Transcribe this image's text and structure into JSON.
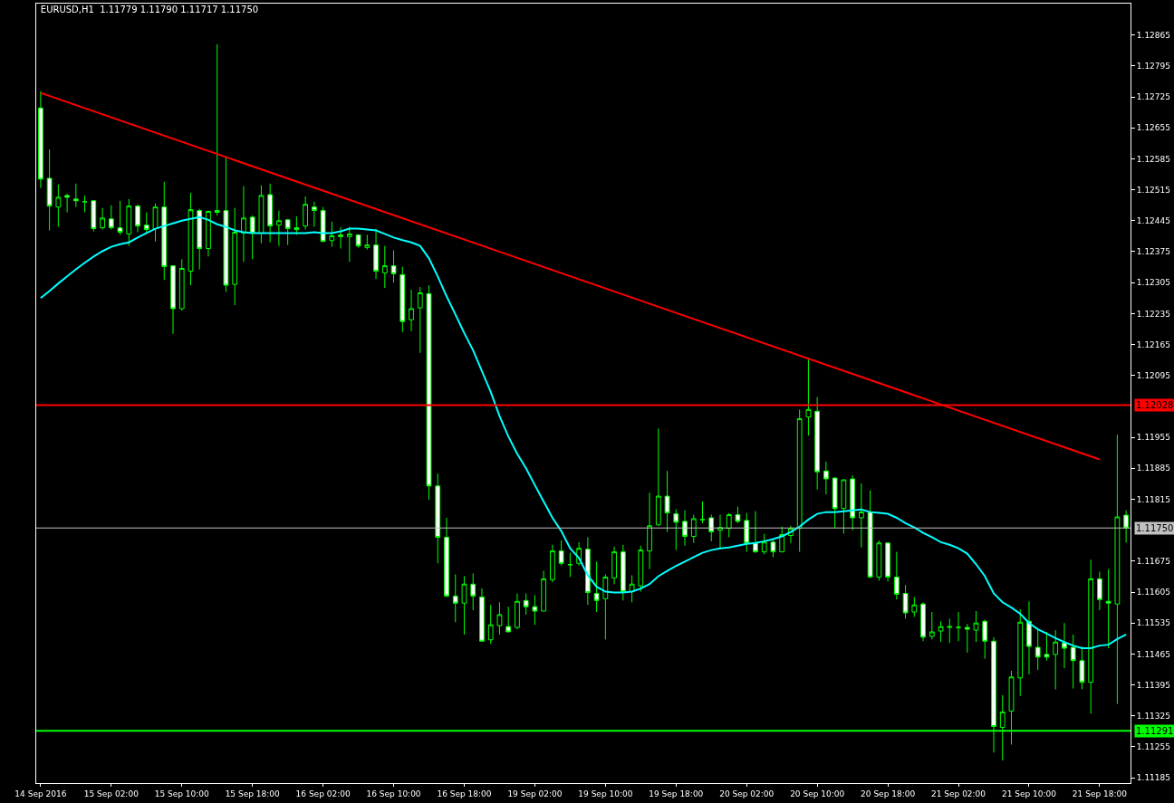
{
  "chart_data": {
    "type": "candlestick",
    "title": "EURUSD,H1  1.11779 1.11790 1.11717 1.11750",
    "categories": [
      "14 Sep 2016",
      null,
      null,
      null,
      null,
      null,
      null,
      null,
      "15 Sep 02:00",
      null,
      null,
      null,
      null,
      null,
      null,
      null,
      "15 Sep 10:00",
      null,
      null,
      null,
      null,
      null,
      null,
      null,
      "15 Sep 18:00",
      null,
      null,
      null,
      null,
      null,
      null,
      null,
      "16 Sep 02:00",
      null,
      null,
      null,
      null,
      null,
      null,
      null,
      "16 Sep 10:00",
      null,
      null,
      null,
      null,
      null,
      null,
      null,
      "16 Sep 18:00",
      null,
      null,
      null,
      null,
      null,
      null,
      null,
      "19 Sep 02:00",
      null,
      null,
      null,
      null,
      null,
      null,
      null,
      "19 Sep 10:00",
      null,
      null,
      null,
      null,
      null,
      null,
      null,
      "19 Sep 18:00",
      null,
      null,
      null,
      null,
      null,
      null,
      null,
      "20 Sep 02:00",
      null,
      null,
      null,
      null,
      null,
      null,
      null,
      "20 Sep 10:00",
      null,
      null,
      null,
      null,
      null,
      null,
      null,
      "20 Sep 18:00",
      null,
      null,
      null,
      null,
      null,
      null,
      null,
      "21 Sep 02:00",
      null,
      null,
      null,
      null,
      null,
      null,
      null,
      "21 Sep 10:00",
      null,
      null,
      null,
      null,
      null,
      null,
      null,
      "21 Sep 18:00",
      null,
      null,
      null
    ],
    "series": [
      {
        "type": "line",
        "color": "#00ffff",
        "values": [
          1.1227,
          1.12286,
          1.12303,
          1.12319,
          1.12335,
          1.1235,
          1.12364,
          1.12376,
          1.12386,
          1.12392,
          1.12396,
          1.12407,
          1.12417,
          1.12427,
          1.12433,
          1.12439,
          1.12445,
          1.12449,
          1.12453,
          1.12447,
          1.12437,
          1.12431,
          1.12423,
          1.12419,
          1.12417,
          1.12417,
          1.12417,
          1.12417,
          1.12417,
          1.12417,
          1.12417,
          1.12419,
          1.12417,
          1.12417,
          1.12421,
          1.12427,
          1.12427,
          1.12425,
          1.12423,
          1.12415,
          1.12407,
          1.12401,
          1.12396,
          1.12388,
          1.1236,
          1.12319,
          1.12274,
          1.12233,
          1.12191,
          1.12152,
          1.12105,
          1.12058,
          1.12003,
          1.11957,
          1.11918,
          1.11885,
          1.11847,
          1.1181,
          1.11773,
          1.11743,
          1.11704,
          1.11682,
          1.11643,
          1.11617,
          1.11606,
          1.11604,
          1.11604,
          1.11606,
          1.11613,
          1.11623,
          1.11641,
          1.11653,
          1.11664,
          1.11674,
          1.11684,
          1.11694,
          1.117,
          1.11704,
          1.11706,
          1.1171,
          1.11714,
          1.11716,
          1.1172,
          1.11725,
          1.11731,
          1.11741,
          1.11753,
          1.11769,
          1.11782,
          1.11786,
          1.11786,
          1.11788,
          1.1179,
          1.11792,
          1.11786,
          1.11784,
          1.11782,
          1.11773,
          1.11761,
          1.11751,
          1.11739,
          1.11729,
          1.11718,
          1.11712,
          1.11704,
          1.11692,
          1.11668,
          1.11641,
          1.11602,
          1.11582,
          1.1157,
          1.11556,
          1.11535,
          1.11521,
          1.11511,
          1.11501,
          1.11492,
          1.11484,
          1.11478,
          1.11478,
          1.11484,
          1.11486,
          1.11499,
          1.11509
        ]
      },
      {
        "type": "line",
        "color": "#ff0000",
        "x": [
          "14 Sep 2016",
          "21 Sep 18:00"
        ],
        "values": [
          1.12734,
          1.11905
        ]
      },
      {
        "color": "#00ff00",
        "ohlc": [
          [
            1.127,
            1.12738,
            1.12519,
            1.12539
          ],
          [
            1.12541,
            1.12606,
            1.12423,
            1.12478
          ],
          [
            1.12476,
            1.12527,
            1.12431,
            1.12498
          ],
          [
            1.12502,
            1.12506,
            1.12464,
            1.12498
          ],
          [
            1.12494,
            1.12529,
            1.12476,
            1.1249
          ],
          [
            1.12488,
            1.12502,
            1.12464,
            1.12488
          ],
          [
            1.1249,
            1.12492,
            1.12421,
            1.12427
          ],
          [
            1.12429,
            1.12474,
            1.12425,
            1.12451
          ],
          [
            1.12449,
            1.1248,
            1.12425,
            1.12429
          ],
          [
            1.12429,
            1.1249,
            1.12413,
            1.12419
          ],
          [
            1.12415,
            1.12494,
            1.12388,
            1.12478
          ],
          [
            1.12478,
            1.12482,
            1.12419,
            1.12433
          ],
          [
            1.12435,
            1.12464,
            1.12415,
            1.12425
          ],
          [
            1.12427,
            1.12484,
            1.12398,
            1.12476
          ],
          [
            1.12476,
            1.12533,
            1.12311,
            1.12341
          ],
          [
            1.12343,
            1.12343,
            1.12189,
            1.12246
          ],
          [
            1.12246,
            1.12358,
            1.12242,
            1.12337
          ],
          [
            1.12331,
            1.12508,
            1.12299,
            1.1247
          ],
          [
            1.12468,
            1.12472,
            1.12335,
            1.12382
          ],
          [
            1.12382,
            1.12468,
            1.12364,
            1.12466
          ],
          [
            1.12468,
            1.12844,
            1.12457,
            1.12464
          ],
          [
            1.12468,
            1.12588,
            1.12284,
            1.12299
          ],
          [
            1.12301,
            1.12474,
            1.12254,
            1.12419
          ],
          [
            1.12417,
            1.12523,
            1.12352,
            1.12451
          ],
          [
            1.12453,
            1.12457,
            1.12358,
            1.12417
          ],
          [
            1.12417,
            1.12525,
            1.12394,
            1.12502
          ],
          [
            1.12504,
            1.12529,
            1.12396,
            1.12433
          ],
          [
            1.12435,
            1.12468,
            1.12388,
            1.12445
          ],
          [
            1.12447,
            1.12449,
            1.1239,
            1.12427
          ],
          [
            1.12429,
            1.12455,
            1.12413,
            1.12425
          ],
          [
            1.12433,
            1.125,
            1.12425,
            1.12482
          ],
          [
            1.12476,
            1.12488,
            1.12431,
            1.12468
          ],
          [
            1.12468,
            1.12476,
            1.12398,
            1.12398
          ],
          [
            1.124,
            1.12443,
            1.12386,
            1.12411
          ],
          [
            1.12413,
            1.12431,
            1.12382,
            1.12409
          ],
          [
            1.12409,
            1.12431,
            1.12352,
            1.12415
          ],
          [
            1.12413,
            1.12413,
            1.12384,
            1.12388
          ],
          [
            1.12384,
            1.12413,
            1.1238,
            1.1239
          ],
          [
            1.1239,
            1.12427,
            1.12313,
            1.12331
          ],
          [
            1.12327,
            1.12388,
            1.12293,
            1.12343
          ],
          [
            1.12343,
            1.12378,
            1.12305,
            1.12325
          ],
          [
            1.12323,
            1.12341,
            1.12193,
            1.12217
          ],
          [
            1.12221,
            1.12289,
            1.12195,
            1.12246
          ],
          [
            1.12248,
            1.12295,
            1.12146,
            1.12282
          ],
          [
            1.1228,
            1.12299,
            1.11814,
            1.11845
          ],
          [
            1.11845,
            1.11873,
            1.1167,
            1.11729
          ],
          [
            1.11729,
            1.11773,
            1.11594,
            1.11596
          ],
          [
            1.11596,
            1.11645,
            1.11537,
            1.1158
          ],
          [
            1.1158,
            1.11641,
            1.11509,
            1.11623
          ],
          [
            1.11623,
            1.11647,
            1.11564,
            1.11596
          ],
          [
            1.11594,
            1.11613,
            1.11494,
            1.11494
          ],
          [
            1.11497,
            1.11576,
            1.11488,
            1.11531
          ],
          [
            1.11529,
            1.11582,
            1.11509,
            1.11554
          ],
          [
            1.11527,
            1.11572,
            1.11515,
            1.11515
          ],
          [
            1.11525,
            1.11602,
            1.11521,
            1.11584
          ],
          [
            1.11586,
            1.11602,
            1.11554,
            1.11572
          ],
          [
            1.11572,
            1.11598,
            1.11531,
            1.11562
          ],
          [
            1.11562,
            1.11653,
            1.11562,
            1.11635
          ],
          [
            1.11633,
            1.11712,
            1.11627,
            1.11698
          ],
          [
            1.11698,
            1.11722,
            1.11665,
            1.1167
          ],
          [
            1.11667,
            1.11694,
            1.11639,
            1.11667
          ],
          [
            1.1167,
            1.11718,
            1.11665,
            1.11704
          ],
          [
            1.11702,
            1.11729,
            1.11576,
            1.11604
          ],
          [
            1.11602,
            1.11674,
            1.1156,
            1.11586
          ],
          [
            1.1159,
            1.11645,
            1.11498,
            1.11639
          ],
          [
            1.11637,
            1.11708,
            1.11623,
            1.11696
          ],
          [
            1.11696,
            1.11712,
            1.11586,
            1.11606
          ],
          [
            1.11606,
            1.11643,
            1.11582,
            1.11623
          ],
          [
            1.11619,
            1.1171,
            1.11606,
            1.117
          ],
          [
            1.11698,
            1.1183,
            1.11657,
            1.11755
          ],
          [
            1.11757,
            1.11975,
            1.11755,
            1.11822
          ],
          [
            1.11822,
            1.11879,
            1.11741,
            1.11784
          ],
          [
            1.11782,
            1.11792,
            1.117,
            1.11763
          ],
          [
            1.11765,
            1.1179,
            1.1171,
            1.11731
          ],
          [
            1.11731,
            1.1178,
            1.11716,
            1.11771
          ],
          [
            1.11769,
            1.1181,
            1.11761,
            1.11769
          ],
          [
            1.11773,
            1.1178,
            1.1172,
            1.11741
          ],
          [
            1.11745,
            1.1178,
            1.11704,
            1.11751
          ],
          [
            1.11749,
            1.11784,
            1.11729,
            1.1178
          ],
          [
            1.1178,
            1.11798,
            1.11761,
            1.11765
          ],
          [
            1.11767,
            1.11784,
            1.11696,
            1.11716
          ],
          [
            1.11716,
            1.11788,
            1.11694,
            1.11696
          ],
          [
            1.11696,
            1.11737,
            1.1169,
            1.11718
          ],
          [
            1.11718,
            1.11725,
            1.11684,
            1.11696
          ],
          [
            1.11696,
            1.11753,
            1.11696,
            1.11735
          ],
          [
            1.11733,
            1.11755,
            1.11716,
            1.11749
          ],
          [
            1.11749,
            1.12018,
            1.11696,
            1.11997
          ],
          [
            1.12001,
            1.12132,
            1.11959,
            1.12018
          ],
          [
            1.12014,
            1.12046,
            1.11837,
            1.11877
          ],
          [
            1.11879,
            1.119,
            1.11826,
            1.11861
          ],
          [
            1.11863,
            1.11865,
            1.11749,
            1.11794
          ],
          [
            1.11794,
            1.11859,
            1.11737,
            1.11859
          ],
          [
            1.11861,
            1.11869,
            1.11745,
            1.11773
          ],
          [
            1.11773,
            1.11851,
            1.11706,
            1.11786
          ],
          [
            1.11786,
            1.11835,
            1.11637,
            1.11639
          ],
          [
            1.11639,
            1.11722,
            1.11631,
            1.11716
          ],
          [
            1.11716,
            1.11718,
            1.11629,
            1.11639
          ],
          [
            1.11639,
            1.11696,
            1.11588,
            1.116
          ],
          [
            1.11602,
            1.11621,
            1.11545,
            1.11558
          ],
          [
            1.1156,
            1.11594,
            1.11549,
            1.11576
          ],
          [
            1.11578,
            1.11582,
            1.11494,
            1.11503
          ],
          [
            1.11505,
            1.1156,
            1.11498,
            1.11515
          ],
          [
            1.11517,
            1.11539,
            1.11492,
            1.11527
          ],
          [
            1.11525,
            1.11545,
            1.1149,
            1.11527
          ],
          [
            1.11525,
            1.1156,
            1.11494,
            1.11525
          ],
          [
            1.11525,
            1.11533,
            1.11468,
            1.11521
          ],
          [
            1.11519,
            1.11562,
            1.11492,
            1.11535
          ],
          [
            1.11539,
            1.11543,
            1.11454,
            1.11494
          ],
          [
            1.11494,
            1.11503,
            1.11242,
            1.11301
          ],
          [
            1.11299,
            1.11372,
            1.11224,
            1.11334
          ],
          [
            1.11336,
            1.11427,
            1.1126,
            1.11413
          ],
          [
            1.11411,
            1.11566,
            1.1137,
            1.11537
          ],
          [
            1.11539,
            1.11584,
            1.11419,
            1.11482
          ],
          [
            1.1148,
            1.11519,
            1.11429,
            1.11458
          ],
          [
            1.11464,
            1.11515,
            1.1145,
            1.11458
          ],
          [
            1.11464,
            1.11519,
            1.11385,
            1.11492
          ],
          [
            1.1149,
            1.11535,
            1.11433,
            1.11478
          ],
          [
            1.1148,
            1.11509,
            1.11387,
            1.1145
          ],
          [
            1.1145,
            1.11482,
            1.11385,
            1.11401
          ],
          [
            1.11401,
            1.11678,
            1.1133,
            1.11635
          ],
          [
            1.11635,
            1.11651,
            1.11564,
            1.11588
          ],
          [
            1.11584,
            1.11657,
            1.11478,
            1.1158
          ],
          [
            1.11578,
            1.11961,
            1.11352,
            1.11775
          ],
          [
            1.11779,
            1.1179,
            1.11717,
            1.1175
          ]
        ]
      }
    ],
    "ref_lines": [
      {
        "axis": "y",
        "value": 1.12028,
        "label": "1.12028",
        "color": "#ff0000"
      },
      {
        "axis": "y",
        "value": 1.1175,
        "label": "1.11750",
        "color": "#c0c0c0"
      },
      {
        "axis": "y",
        "value": 1.11291,
        "label": "1.11291",
        "color": "#00ff00"
      }
    ],
    "ylim": [
      1.11173,
      1.12936
    ],
    "yticks": [
      1.11185,
      1.11255,
      1.11325,
      1.11395,
      1.11465,
      1.11535,
      1.11605,
      1.11675,
      1.11815,
      1.11885,
      1.11955,
      1.12095,
      1.12165,
      1.12235,
      1.12305,
      1.12375,
      1.12445,
      1.12515,
      1.12585,
      1.12655,
      1.12725,
      1.12795,
      1.12865
    ],
    "grid": false
  }
}
